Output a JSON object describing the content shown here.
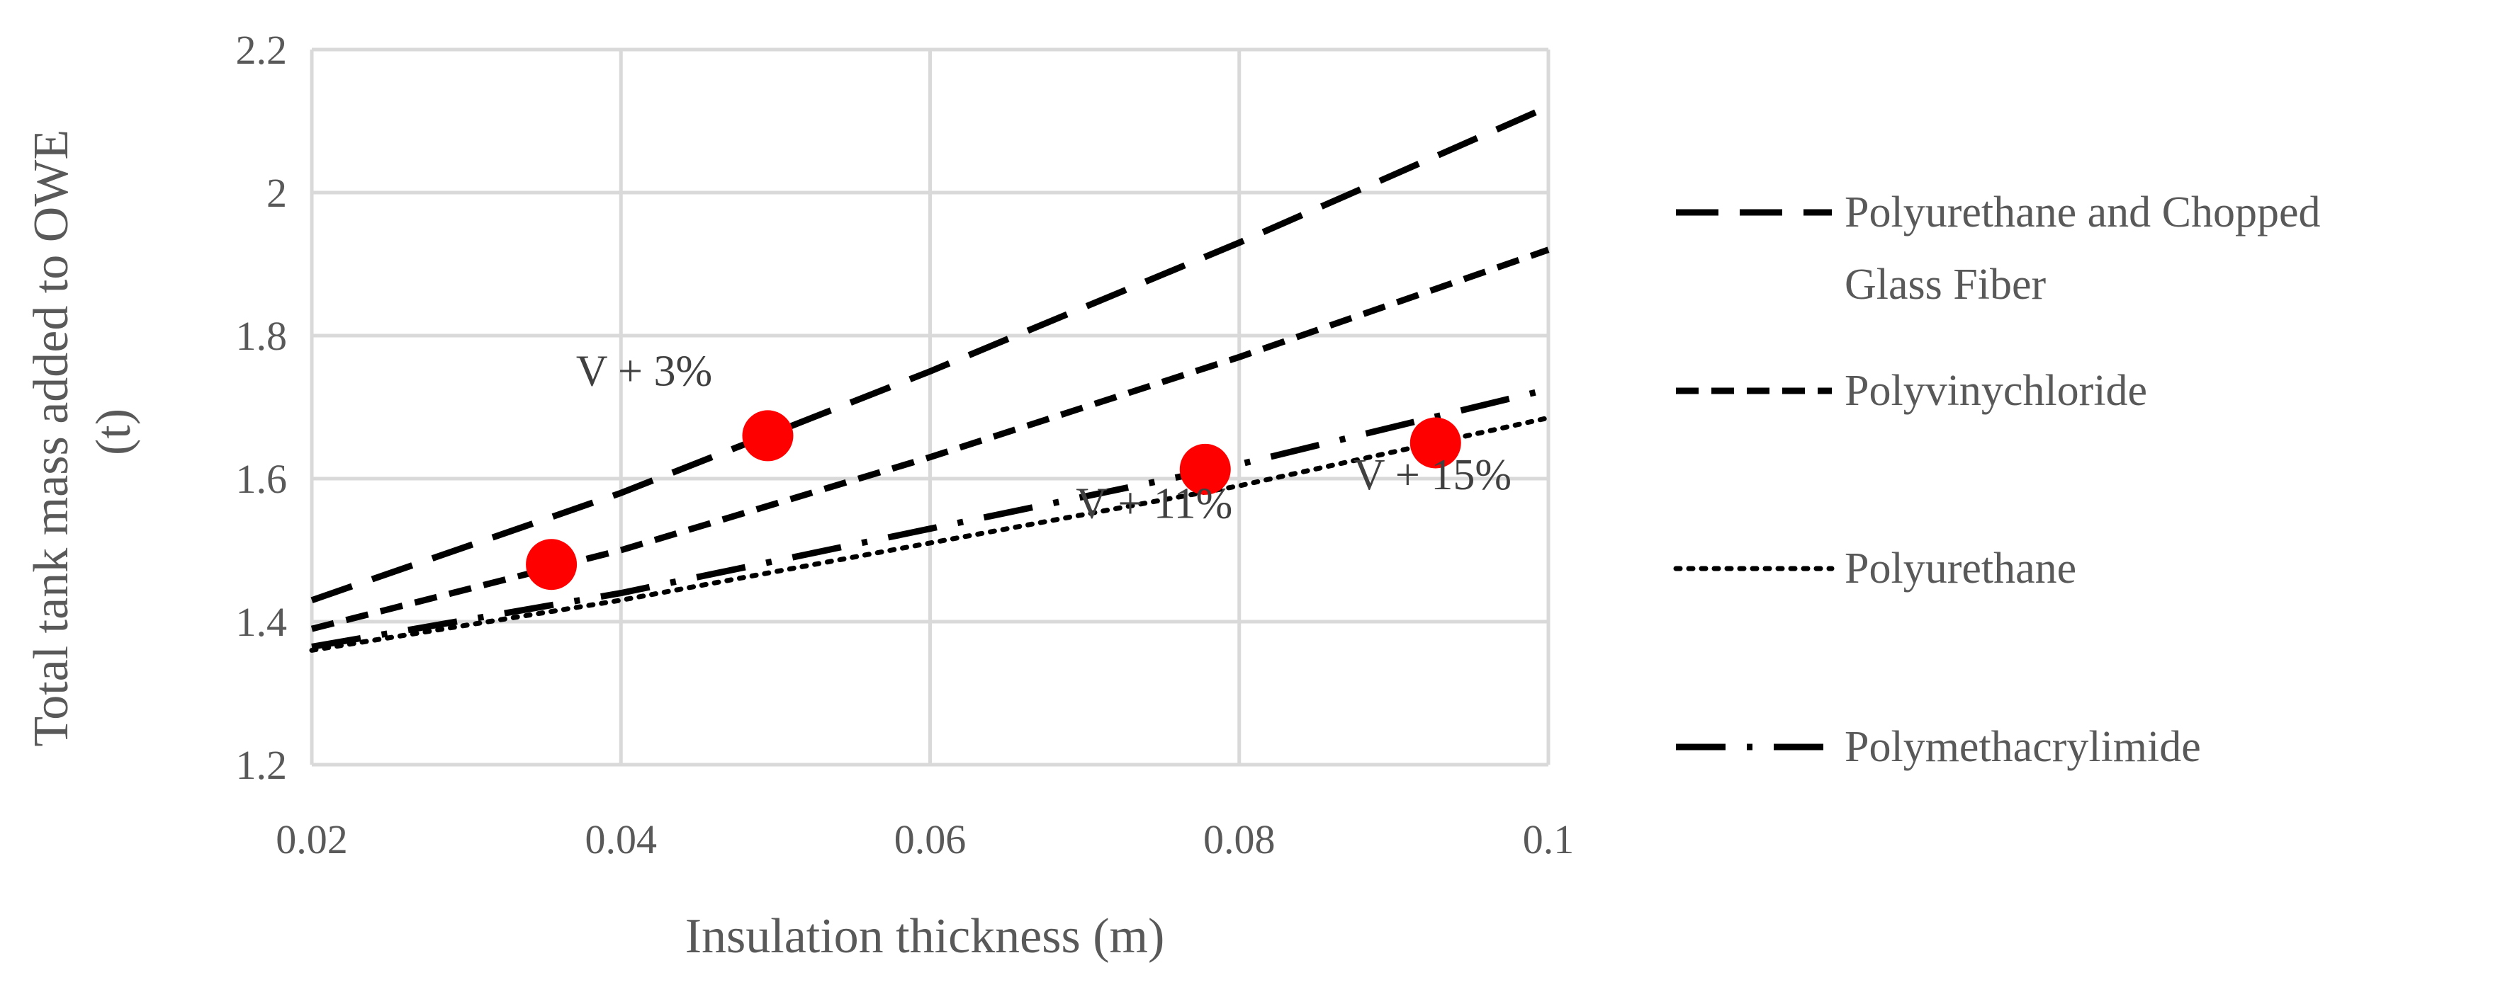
{
  "chart_data": {
    "type": "line",
    "title": "",
    "xlabel": "Insulation thickness (m)",
    "ylabel_lines": [
      "Total tank mass added to OWE",
      "(t)"
    ],
    "xlim": [
      0.02,
      0.1
    ],
    "ylim": [
      1.2,
      2.2
    ],
    "x_ticks": [
      0.02,
      0.04,
      0.06,
      0.08,
      0.1
    ],
    "x_tick_labels": [
      "0.02",
      "0.04",
      "0.06",
      "0.08",
      "0.1"
    ],
    "y_ticks": [
      1.2,
      1.4,
      1.6,
      1.8,
      2.0,
      2.2
    ],
    "y_tick_labels": [
      "1.2",
      "1.4",
      "1.6",
      "1.8",
      "2",
      "2.2"
    ],
    "grid": true,
    "legend_position": "right",
    "series": [
      {
        "name": "Polyurethane and Chopped Glass Fiber",
        "legend_lines": [
          "Polyurethane and Chopped",
          "Glass Fiber"
        ],
        "dash": "long-dash",
        "x": [
          0.02,
          0.04,
          0.06,
          0.08,
          0.1
        ],
        "y": [
          1.43,
          1.58,
          1.75,
          1.93,
          2.12
        ]
      },
      {
        "name": "Polyvinychloride",
        "legend_lines": [
          "Polyvinychloride"
        ],
        "dash": "short-dash",
        "x": [
          0.02,
          0.04,
          0.06,
          0.08,
          0.1
        ],
        "y": [
          1.39,
          1.5,
          1.63,
          1.77,
          1.92
        ]
      },
      {
        "name": "Polyurethane",
        "legend_lines": [
          "Polyurethane"
        ],
        "dash": "dot",
        "x": [
          0.02,
          0.04,
          0.06,
          0.08,
          0.1
        ],
        "y": [
          1.36,
          1.43,
          1.51,
          1.59,
          1.685
        ]
      },
      {
        "name": "Polymethacrylimide",
        "legend_lines": [
          "Polymethacrylimide"
        ],
        "dash": "dash-dot",
        "x": [
          0.02,
          0.04,
          0.06,
          0.08,
          0.1
        ],
        "y": [
          1.365,
          1.44,
          1.53,
          1.62,
          1.725
        ]
      }
    ],
    "markers": [
      {
        "x": 0.0355,
        "y": 1.48,
        "color": "#ff0000"
      },
      {
        "x": 0.0495,
        "y": 1.66,
        "color": "#ff0000"
      },
      {
        "x": 0.0778,
        "y": 1.613,
        "color": "#ff0000"
      },
      {
        "x": 0.0927,
        "y": 1.65,
        "color": "#ff0000"
      }
    ],
    "annotations": [
      {
        "text": "V + 3%",
        "x": 0.0415,
        "y": 1.73
      },
      {
        "text": "V + 11%",
        "x": 0.0745,
        "y": 1.545
      },
      {
        "text": "V + 15%",
        "x": 0.0925,
        "y": 1.585
      }
    ],
    "colors": {
      "line": "#000000",
      "marker": "#ff0000",
      "grid": "#d9d9d9",
      "text": "#595959"
    }
  }
}
